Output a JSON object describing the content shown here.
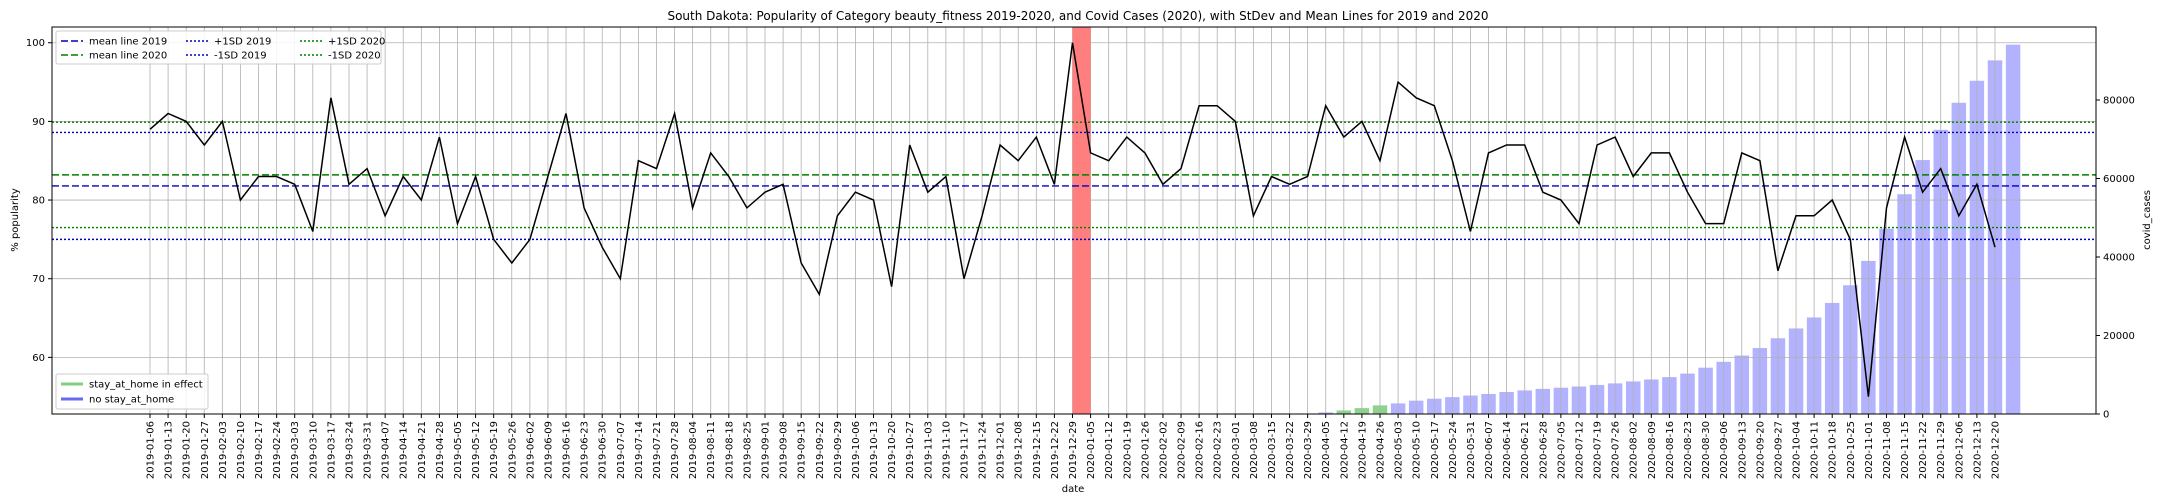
{
  "chart_data": {
    "type": "line",
    "title": "South Dakota: Popularity of Category beauty_fitness 2019-2020, and Covid Cases (2020), with StDev and Mean Lines for 2019 and 2020",
    "xlabel": "date",
    "ylabel": "% popularity",
    "y2label": "covid_cases",
    "ylim": [
      52.8,
      102.0
    ],
    "y2lim": [
      0,
      98600
    ],
    "yticks": [
      60,
      70,
      80,
      90,
      100
    ],
    "y2ticks": [
      0,
      20000,
      40000,
      60000,
      80000
    ],
    "grid": true,
    "legend_position": "upper-left",
    "dates": [
      "2019-01-06",
      "2019-01-13",
      "2019-01-20",
      "2019-01-27",
      "2019-02-03",
      "2019-02-10",
      "2019-02-17",
      "2019-02-24",
      "2019-03-03",
      "2019-03-10",
      "2019-03-17",
      "2019-03-24",
      "2019-03-31",
      "2019-04-07",
      "2019-04-14",
      "2019-04-21",
      "2019-04-28",
      "2019-05-05",
      "2019-05-12",
      "2019-05-19",
      "2019-05-26",
      "2019-06-02",
      "2019-06-09",
      "2019-06-16",
      "2019-06-23",
      "2019-06-30",
      "2019-07-07",
      "2019-07-14",
      "2019-07-21",
      "2019-07-28",
      "2019-08-04",
      "2019-08-11",
      "2019-08-18",
      "2019-08-25",
      "2019-09-01",
      "2019-09-08",
      "2019-09-15",
      "2019-09-22",
      "2019-09-29",
      "2019-10-06",
      "2019-10-13",
      "2019-10-20",
      "2019-10-27",
      "2019-11-03",
      "2019-11-10",
      "2019-11-17",
      "2019-11-24",
      "2019-12-01",
      "2019-12-08",
      "2019-12-15",
      "2019-12-22",
      "2019-12-29",
      "2020-01-05",
      "2020-01-12",
      "2020-01-19",
      "2020-01-26",
      "2020-02-02",
      "2020-02-09",
      "2020-02-16",
      "2020-02-23",
      "2020-03-01",
      "2020-03-08",
      "2020-03-15",
      "2020-03-22",
      "2020-03-29",
      "2020-04-05",
      "2020-04-12",
      "2020-04-19",
      "2020-04-26",
      "2020-05-03",
      "2020-05-10",
      "2020-05-17",
      "2020-05-24",
      "2020-05-31",
      "2020-06-07",
      "2020-06-14",
      "2020-06-21",
      "2020-06-28",
      "2020-07-05",
      "2020-07-12",
      "2020-07-19",
      "2020-07-26",
      "2020-08-02",
      "2020-08-09",
      "2020-08-16",
      "2020-08-23",
      "2020-08-30",
      "2020-09-06",
      "2020-09-13",
      "2020-09-20",
      "2020-09-27",
      "2020-10-04",
      "2020-10-11",
      "2020-10-18",
      "2020-10-25",
      "2020-11-01",
      "2020-11-08",
      "2020-11-15",
      "2020-11-22",
      "2020-11-29",
      "2020-12-06",
      "2020-12-13",
      "2020-12-20"
    ],
    "popularity": [
      89,
      91,
      90,
      87,
      90,
      80,
      83,
      83,
      82,
      76,
      93,
      82,
      84,
      78,
      83,
      80,
      88,
      77,
      83,
      75,
      72,
      75,
      83,
      91,
      79,
      74,
      70,
      85,
      84,
      91,
      79,
      86,
      83,
      79,
      81,
      82,
      72,
      68,
      78,
      81,
      80,
      69,
      87,
      81,
      83,
      70,
      78,
      87,
      85,
      88,
      82,
      100,
      86,
      85,
      88,
      86,
      82,
      84,
      92,
      92,
      90,
      78,
      83,
      82,
      83,
      92,
      88,
      90,
      85,
      95,
      93,
      92,
      85,
      76,
      86,
      87,
      87,
      81,
      80,
      77,
      87,
      88,
      83,
      86,
      86,
      81,
      77,
      77,
      86,
      85,
      71,
      78,
      78,
      80,
      75,
      55,
      79,
      88,
      81,
      84,
      78,
      82,
      74
    ],
    "covid_cases": [
      0,
      0,
      0,
      0,
      0,
      0,
      0,
      0,
      0,
      0,
      0,
      0,
      0,
      0,
      0,
      0,
      0,
      0,
      0,
      0,
      0,
      0,
      0,
      0,
      0,
      0,
      0,
      0,
      0,
      0,
      0,
      0,
      0,
      0,
      0,
      0,
      0,
      0,
      0,
      0,
      0,
      0,
      0,
      0,
      0,
      0,
      0,
      0,
      0,
      0,
      0,
      0,
      0,
      0,
      0,
      0,
      0,
      0,
      0,
      0,
      0,
      0,
      0,
      0,
      0,
      400,
      900,
      1500,
      2200,
      2700,
      3400,
      3900,
      4300,
      4700,
      5100,
      5600,
      6000,
      6400,
      6700,
      7000,
      7400,
      7800,
      8300,
      8800,
      9400,
      10300,
      11800,
      13300,
      14900,
      16800,
      19300,
      21800,
      24600,
      28300,
      32800,
      39000,
      47200,
      56000,
      64700,
      72400,
      79300,
      84900,
      90100,
      94100
    ],
    "covid_bar_colors": {
      "stay_at_home": "#7fcf7f",
      "no_stay_at_home": "#aaaaff"
    },
    "stay_at_home_dates": [
      "2020-04-12",
      "2020-04-19",
      "2020-04-26"
    ],
    "highlight_span": [
      "2019-12-29",
      "2020-01-05"
    ],
    "highlight_color": "#ff7f7f",
    "reference_lines": [
      {
        "name": "mean line 2019",
        "value": 81.8,
        "color": "#0000bf",
        "dash": "dashed"
      },
      {
        "name": "mean line 2020",
        "value": 83.2,
        "color": "#007f00",
        "dash": "dashed"
      },
      {
        "name": "+1SD 2019",
        "value": 88.6,
        "color": "#0000bf",
        "dash": "dotted"
      },
      {
        "name": "-1SD 2019",
        "value": 75.0,
        "color": "#0000bf",
        "dash": "dotted"
      },
      {
        "name": "+1SD 2020",
        "value": 89.9,
        "color": "#007f00",
        "dash": "dotted"
      },
      {
        "name": "-1SD 2020",
        "value": 76.5,
        "color": "#007f00",
        "dash": "dotted"
      }
    ],
    "legend_bottom": [
      {
        "name": "stay_at_home in effect",
        "color": "#7fcf7f"
      },
      {
        "name": "no stay_at_home",
        "color": "#6a6af0"
      }
    ]
  }
}
